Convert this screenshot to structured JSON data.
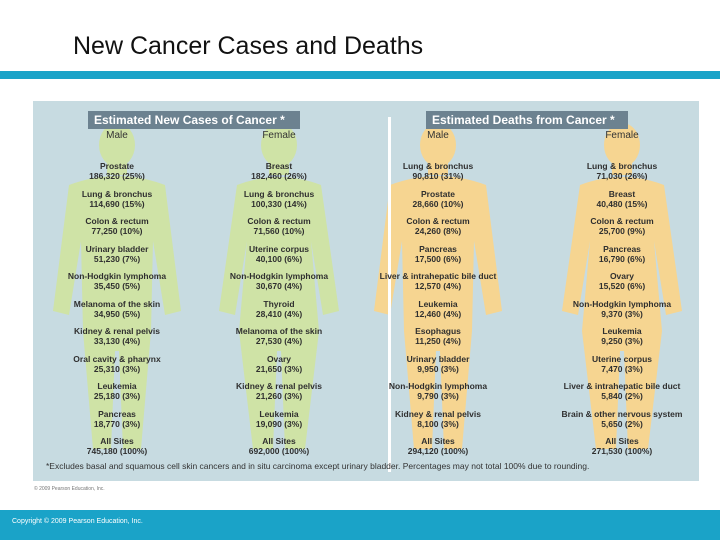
{
  "slide": {
    "title": "New Cancer Cases and Deaths",
    "copyright": "Copyright © 2009 Pearson Education, Inc.",
    "figure_credit": "© 2009 Pearson Education, Inc."
  },
  "colors": {
    "accent": "#1aa3c8",
    "header_bar": "#6c8290",
    "panel": "#c7dbe1",
    "cases_body": "#cfe3a6",
    "deaths_body": "#f6d591"
  },
  "figure": {
    "cases_header": "Estimated New Cases of Cancer *",
    "deaths_header": "Estimated Deaths from Cancer *",
    "footnote": "*Excludes basal and squamous cell skin cancers and in situ carcinoma except urinary bladder. Percentages may not total 100% due to rounding.",
    "columns": [
      {
        "label": "Male",
        "entries": [
          {
            "site": "Prostate",
            "value": "186,320 (25%)"
          },
          {
            "site": "Lung & bronchus",
            "value": "114,690 (15%)"
          },
          {
            "site": "Colon & rectum",
            "value": "77,250 (10%)"
          },
          {
            "site": "Urinary bladder",
            "value": "51,230 (7%)"
          },
          {
            "site": "Non-Hodgkin lymphoma",
            "value": "35,450 (5%)"
          },
          {
            "site": "Melanoma of the skin",
            "value": "34,950 (5%)"
          },
          {
            "site": "Kidney & renal pelvis",
            "value": "33,130 (4%)"
          },
          {
            "site": "Oral cavity & pharynx",
            "value": "25,310 (3%)"
          },
          {
            "site": "Leukemia",
            "value": "25,180 (3%)"
          },
          {
            "site": "Pancreas",
            "value": "18,770 (3%)"
          },
          {
            "site": "All Sites",
            "value": "745,180 (100%)"
          }
        ]
      },
      {
        "label": "Female",
        "entries": [
          {
            "site": "Breast",
            "value": "182,460 (26%)"
          },
          {
            "site": "Lung & bronchus",
            "value": "100,330 (14%)"
          },
          {
            "site": "Colon & rectum",
            "value": "71,560 (10%)"
          },
          {
            "site": "Uterine corpus",
            "value": "40,100 (6%)"
          },
          {
            "site": "Non-Hodgkin lymphoma",
            "value": "30,670 (4%)"
          },
          {
            "site": "Thyroid",
            "value": "28,410 (4%)"
          },
          {
            "site": "Melanoma of the skin",
            "value": "27,530 (4%)"
          },
          {
            "site": "Ovary",
            "value": "21,650 (3%)"
          },
          {
            "site": "Kidney & renal pelvis",
            "value": "21,260 (3%)"
          },
          {
            "site": "Leukemia",
            "value": "19,090 (3%)"
          },
          {
            "site": "All Sites",
            "value": "692,000 (100%)"
          }
        ]
      },
      {
        "label": "Male",
        "entries": [
          {
            "site": "Lung & bronchus",
            "value": "90,810 (31%)"
          },
          {
            "site": "Prostate",
            "value": "28,660 (10%)"
          },
          {
            "site": "Colon & rectum",
            "value": "24,260 (8%)"
          },
          {
            "site": "Pancreas",
            "value": "17,500 (6%)"
          },
          {
            "site": "Liver & intrahepatic bile duct",
            "value": "12,570 (4%)"
          },
          {
            "site": "Leukemia",
            "value": "12,460 (4%)"
          },
          {
            "site": "Esophagus",
            "value": "11,250 (4%)"
          },
          {
            "site": "Urinary bladder",
            "value": "9,950 (3%)"
          },
          {
            "site": "Non-Hodgkin lymphoma",
            "value": "9,790 (3%)"
          },
          {
            "site": "Kidney & renal pelvis",
            "value": "8,100 (3%)"
          },
          {
            "site": "All Sites",
            "value": "294,120 (100%)"
          }
        ]
      },
      {
        "label": "Female",
        "entries": [
          {
            "site": "Lung & bronchus",
            "value": "71,030 (26%)"
          },
          {
            "site": "Breast",
            "value": "40,480 (15%)"
          },
          {
            "site": "Colon & rectum",
            "value": "25,700 (9%)"
          },
          {
            "site": "Pancreas",
            "value": "16,790 (6%)"
          },
          {
            "site": "Ovary",
            "value": "15,520 (6%)"
          },
          {
            "site": "Non-Hodgkin lymphoma",
            "value": "9,370 (3%)"
          },
          {
            "site": "Leukemia",
            "value": "9,250 (3%)"
          },
          {
            "site": "Uterine corpus",
            "value": "7,470 (3%)"
          },
          {
            "site": "Liver & intrahepatic bile duct",
            "value": "5,840 (2%)"
          },
          {
            "site": "Brain & other nervous system",
            "value": "5,650 (2%)"
          },
          {
            "site": "All Sites",
            "value": "271,530 (100%)"
          }
        ]
      }
    ]
  }
}
